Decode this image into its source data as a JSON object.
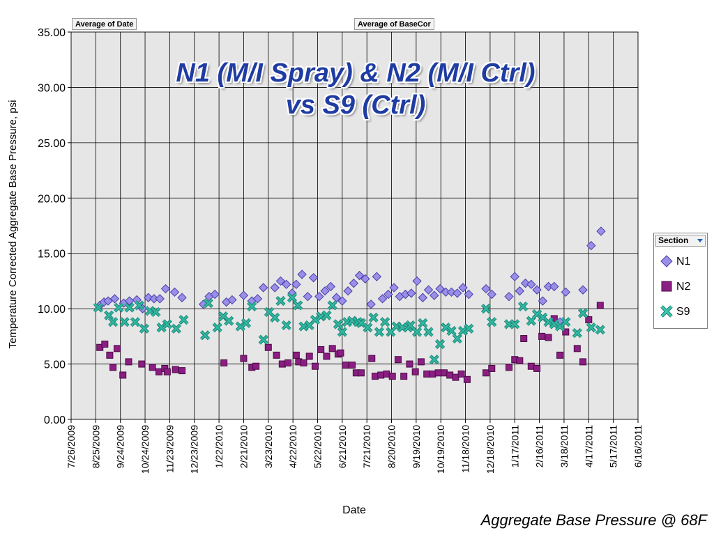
{
  "field_buttons": {
    "date": "Average of Date",
    "basecor": "Average of BaseCor"
  },
  "legend": {
    "header": "Section",
    "items": [
      {
        "name": "N1",
        "color": "#9a8fe8",
        "marker": "diamond"
      },
      {
        "name": "N2",
        "color": "#8b1e82",
        "marker": "square"
      },
      {
        "name": "S9",
        "color": "#2fb9a2",
        "marker": "x"
      }
    ]
  },
  "caption": "Aggregate Base Pressure @ 68F",
  "chart_data": {
    "type": "scatter",
    "title_lines": [
      "N1 (M/I Spray) & N2 (M/I Ctrl)",
      "vs S9 (Ctrl)"
    ],
    "xlabel": "Date",
    "ylabel": "Temperature Corrected Aggregate Base Pressure, psi",
    "x_start": "2009-07-26",
    "x_ticks": [
      "7/26/2009",
      "8/25/2009",
      "9/24/2009",
      "10/24/2009",
      "11/23/2009",
      "12/23/2009",
      "1/22/2010",
      "2/21/2010",
      "3/23/2010",
      "4/22/2010",
      "5/22/2010",
      "6/21/2010",
      "7/21/2010",
      "8/20/2010",
      "9/19/2010",
      "10/19/2010",
      "11/18/2010",
      "12/18/2010",
      "1/17/2011",
      "2/16/2011",
      "3/18/2011",
      "4/17/2011",
      "5/17/2011",
      "6/16/2011"
    ],
    "y_ticks": [
      "0.00",
      "5.00",
      "10.00",
      "15.00",
      "20.00",
      "25.00",
      "30.00",
      "35.00"
    ],
    "xlim": [
      "2009-07-26",
      "2011-06-16"
    ],
    "ylim": [
      0,
      35
    ],
    "grid": true,
    "legend_position": "right",
    "series": [
      {
        "name": "N1",
        "marker": "diamond",
        "points": [
          [
            "2009-08-30",
            10.3
          ],
          [
            "2009-09-04",
            10.6
          ],
          [
            "2009-09-09",
            10.7
          ],
          [
            "2009-09-17",
            10.9
          ],
          [
            "2009-09-28",
            10.5
          ],
          [
            "2009-10-05",
            10.7
          ],
          [
            "2009-10-14",
            10.8
          ],
          [
            "2009-10-21",
            10.0
          ],
          [
            "2009-10-28",
            11.0
          ],
          [
            "2009-11-04",
            10.9
          ],
          [
            "2009-11-11",
            10.9
          ],
          [
            "2009-11-18",
            11.8
          ],
          [
            "2009-11-29",
            11.5
          ],
          [
            "2009-12-08",
            11.0
          ],
          [
            "2010-01-03",
            10.4
          ],
          [
            "2010-01-10",
            11.1
          ],
          [
            "2010-01-17",
            11.3
          ],
          [
            "2010-01-31",
            10.6
          ],
          [
            "2010-02-07",
            10.8
          ],
          [
            "2010-02-21",
            11.2
          ],
          [
            "2010-03-03",
            10.7
          ],
          [
            "2010-03-10",
            10.9
          ],
          [
            "2010-03-17",
            11.9
          ],
          [
            "2010-03-31",
            11.9
          ],
          [
            "2010-04-07",
            12.5
          ],
          [
            "2010-04-14",
            12.2
          ],
          [
            "2010-04-21",
            11.4
          ],
          [
            "2010-04-26",
            12.2
          ],
          [
            "2010-05-03",
            13.1
          ],
          [
            "2010-05-10",
            11.1
          ],
          [
            "2010-05-17",
            12.8
          ],
          [
            "2010-05-24",
            11.1
          ],
          [
            "2010-05-31",
            11.6
          ],
          [
            "2010-06-07",
            12.0
          ],
          [
            "2010-06-14",
            11.0
          ],
          [
            "2010-06-21",
            10.7
          ],
          [
            "2010-06-28",
            11.6
          ],
          [
            "2010-07-05",
            12.3
          ],
          [
            "2010-07-12",
            13.0
          ],
          [
            "2010-07-19",
            12.7
          ],
          [
            "2010-07-26",
            10.4
          ],
          [
            "2010-08-02",
            12.9
          ],
          [
            "2010-08-09",
            10.9
          ],
          [
            "2010-08-16",
            11.3
          ],
          [
            "2010-08-23",
            11.9
          ],
          [
            "2010-08-30",
            11.1
          ],
          [
            "2010-09-06",
            11.3
          ],
          [
            "2010-09-13",
            11.4
          ],
          [
            "2010-09-20",
            12.5
          ],
          [
            "2010-09-27",
            11.0
          ],
          [
            "2010-10-04",
            11.7
          ],
          [
            "2010-10-11",
            11.2
          ],
          [
            "2010-10-18",
            11.8
          ],
          [
            "2010-10-25",
            11.5
          ],
          [
            "2010-11-01",
            11.5
          ],
          [
            "2010-11-08",
            11.4
          ],
          [
            "2010-11-15",
            11.9
          ],
          [
            "2010-11-22",
            11.3
          ],
          [
            "2010-12-13",
            11.8
          ],
          [
            "2010-12-20",
            11.3
          ],
          [
            "2011-01-10",
            11.1
          ],
          [
            "2011-01-17",
            12.9
          ],
          [
            "2011-01-23",
            11.6
          ],
          [
            "2011-01-30",
            12.3
          ],
          [
            "2011-02-06",
            12.2
          ],
          [
            "2011-02-13",
            11.7
          ],
          [
            "2011-02-20",
            10.7
          ],
          [
            "2011-02-27",
            12.0
          ],
          [
            "2011-03-06",
            12.0
          ],
          [
            "2011-03-13",
            8.8
          ],
          [
            "2011-03-20",
            11.5
          ],
          [
            "2011-04-10",
            11.7
          ],
          [
            "2011-04-20",
            15.7
          ],
          [
            "2011-05-02",
            17.0
          ]
        ]
      },
      {
        "name": "N2",
        "marker": "square",
        "points": [
          [
            "2009-08-30",
            6.5
          ],
          [
            "2009-09-05",
            6.8
          ],
          [
            "2009-09-11",
            5.8
          ],
          [
            "2009-09-15",
            4.7
          ],
          [
            "2009-09-20",
            6.4
          ],
          [
            "2009-09-27",
            4.0
          ],
          [
            "2009-10-04",
            5.2
          ],
          [
            "2009-10-20",
            5.0
          ],
          [
            "2009-11-02",
            4.7
          ],
          [
            "2009-11-10",
            4.3
          ],
          [
            "2009-11-17",
            4.6
          ],
          [
            "2009-11-20",
            4.3
          ],
          [
            "2009-11-30",
            4.5
          ],
          [
            "2009-12-08",
            4.4
          ],
          [
            "2010-01-28",
            5.1
          ],
          [
            "2010-02-21",
            5.5
          ],
          [
            "2010-03-03",
            4.7
          ],
          [
            "2010-03-08",
            4.8
          ],
          [
            "2010-03-23",
            6.5
          ],
          [
            "2010-04-02",
            5.8
          ],
          [
            "2010-04-09",
            5.0
          ],
          [
            "2010-04-16",
            5.1
          ],
          [
            "2010-04-26",
            5.8
          ],
          [
            "2010-04-29",
            5.2
          ],
          [
            "2010-05-05",
            5.1
          ],
          [
            "2010-05-12",
            5.7
          ],
          [
            "2010-05-19",
            4.8
          ],
          [
            "2010-05-26",
            6.3
          ],
          [
            "2010-06-02",
            5.7
          ],
          [
            "2010-06-09",
            6.4
          ],
          [
            "2010-06-16",
            5.9
          ],
          [
            "2010-06-19",
            6.0
          ],
          [
            "2010-06-25",
            4.9
          ],
          [
            "2010-07-03",
            4.9
          ],
          [
            "2010-07-08",
            4.2
          ],
          [
            "2010-07-14",
            4.2
          ],
          [
            "2010-07-27",
            5.5
          ],
          [
            "2010-07-31",
            3.9
          ],
          [
            "2010-08-07",
            4.0
          ],
          [
            "2010-08-14",
            4.1
          ],
          [
            "2010-08-21",
            3.9
          ],
          [
            "2010-08-28",
            5.4
          ],
          [
            "2010-09-04",
            3.9
          ],
          [
            "2010-09-11",
            5.0
          ],
          [
            "2010-09-18",
            4.3
          ],
          [
            "2010-09-25",
            5.2
          ],
          [
            "2010-10-02",
            4.1
          ],
          [
            "2010-10-09",
            4.1
          ],
          [
            "2010-10-16",
            4.2
          ],
          [
            "2010-10-23",
            4.2
          ],
          [
            "2010-10-30",
            4.0
          ],
          [
            "2010-11-06",
            3.8
          ],
          [
            "2010-11-13",
            4.1
          ],
          [
            "2010-11-20",
            3.6
          ],
          [
            "2010-12-13",
            4.2
          ],
          [
            "2010-12-20",
            4.6
          ],
          [
            "2011-01-10",
            4.7
          ],
          [
            "2011-01-17",
            5.4
          ],
          [
            "2011-01-23",
            5.3
          ],
          [
            "2011-01-28",
            7.3
          ],
          [
            "2011-02-06",
            4.8
          ],
          [
            "2011-02-13",
            4.6
          ],
          [
            "2011-02-19",
            7.5
          ],
          [
            "2011-02-27",
            7.4
          ],
          [
            "2011-03-06",
            9.1
          ],
          [
            "2011-03-13",
            5.8
          ],
          [
            "2011-03-20",
            7.9
          ],
          [
            "2011-04-03",
            6.4
          ],
          [
            "2011-04-10",
            5.2
          ],
          [
            "2011-04-17",
            9.0
          ],
          [
            "2011-05-01",
            10.3
          ]
        ]
      },
      {
        "name": "S9",
        "marker": "x",
        "points": [
          [
            "2009-08-28",
            10.1
          ],
          [
            "2009-09-10",
            9.4
          ],
          [
            "2009-09-15",
            8.8
          ],
          [
            "2009-09-22",
            10.1
          ],
          [
            "2009-09-29",
            8.8
          ],
          [
            "2009-10-05",
            10.1
          ],
          [
            "2009-10-12",
            8.8
          ],
          [
            "2009-10-17",
            10.3
          ],
          [
            "2009-10-23",
            8.2
          ],
          [
            "2009-10-30",
            9.8
          ],
          [
            "2009-11-06",
            9.7
          ],
          [
            "2009-11-13",
            8.3
          ],
          [
            "2009-11-20",
            8.6
          ],
          [
            "2009-12-01",
            8.2
          ],
          [
            "2009-12-10",
            9.0
          ],
          [
            "2010-01-05",
            7.6
          ],
          [
            "2010-01-09",
            10.5
          ],
          [
            "2010-01-20",
            8.3
          ],
          [
            "2010-01-27",
            9.3
          ],
          [
            "2010-02-03",
            8.9
          ],
          [
            "2010-02-17",
            8.4
          ],
          [
            "2010-02-24",
            8.7
          ],
          [
            "2010-03-03",
            10.2
          ],
          [
            "2010-03-17",
            7.2
          ],
          [
            "2010-03-24",
            9.7
          ],
          [
            "2010-03-31",
            9.2
          ],
          [
            "2010-04-07",
            10.7
          ],
          [
            "2010-04-14",
            8.5
          ],
          [
            "2010-04-21",
            11.0
          ],
          [
            "2010-04-28",
            10.3
          ],
          [
            "2010-05-05",
            8.4
          ],
          [
            "2010-05-12",
            8.5
          ],
          [
            "2010-05-19",
            9.0
          ],
          [
            "2010-05-26",
            9.3
          ],
          [
            "2010-06-02",
            9.4
          ],
          [
            "2010-06-09",
            10.3
          ],
          [
            "2010-06-16",
            8.6
          ],
          [
            "2010-06-21",
            7.9
          ],
          [
            "2010-06-27",
            8.8
          ],
          [
            "2010-07-03",
            8.9
          ],
          [
            "2010-07-10",
            8.8
          ],
          [
            "2010-07-14",
            8.7
          ],
          [
            "2010-07-22",
            8.3
          ],
          [
            "2010-07-29",
            9.2
          ],
          [
            "2010-08-05",
            7.9
          ],
          [
            "2010-08-12",
            8.8
          ],
          [
            "2010-08-19",
            7.9
          ],
          [
            "2010-08-26",
            8.4
          ],
          [
            "2010-09-02",
            8.3
          ],
          [
            "2010-09-09",
            8.3
          ],
          [
            "2010-09-12",
            8.5
          ],
          [
            "2010-09-20",
            7.9
          ],
          [
            "2010-09-27",
            8.7
          ],
          [
            "2010-10-04",
            7.9
          ],
          [
            "2010-10-11",
            5.4
          ],
          [
            "2010-10-18",
            6.8
          ],
          [
            "2010-10-25",
            8.3
          ],
          [
            "2010-11-01",
            8.0
          ],
          [
            "2010-11-08",
            7.3
          ],
          [
            "2010-11-15",
            8.0
          ],
          [
            "2010-11-22",
            8.2
          ],
          [
            "2010-12-13",
            10.0
          ],
          [
            "2010-12-20",
            8.8
          ],
          [
            "2011-01-10",
            8.6
          ],
          [
            "2011-01-17",
            8.6
          ],
          [
            "2011-01-27",
            10.2
          ],
          [
            "2011-02-06",
            8.9
          ],
          [
            "2011-02-13",
            9.5
          ],
          [
            "2011-02-20",
            9.2
          ],
          [
            "2011-02-27",
            8.8
          ],
          [
            "2011-03-06",
            8.6
          ],
          [
            "2011-03-13",
            8.4
          ],
          [
            "2011-03-20",
            8.8
          ],
          [
            "2011-04-03",
            7.8
          ],
          [
            "2011-04-10",
            9.6
          ],
          [
            "2011-04-20",
            8.3
          ],
          [
            "2011-05-01",
            8.1
          ]
        ]
      }
    ]
  }
}
